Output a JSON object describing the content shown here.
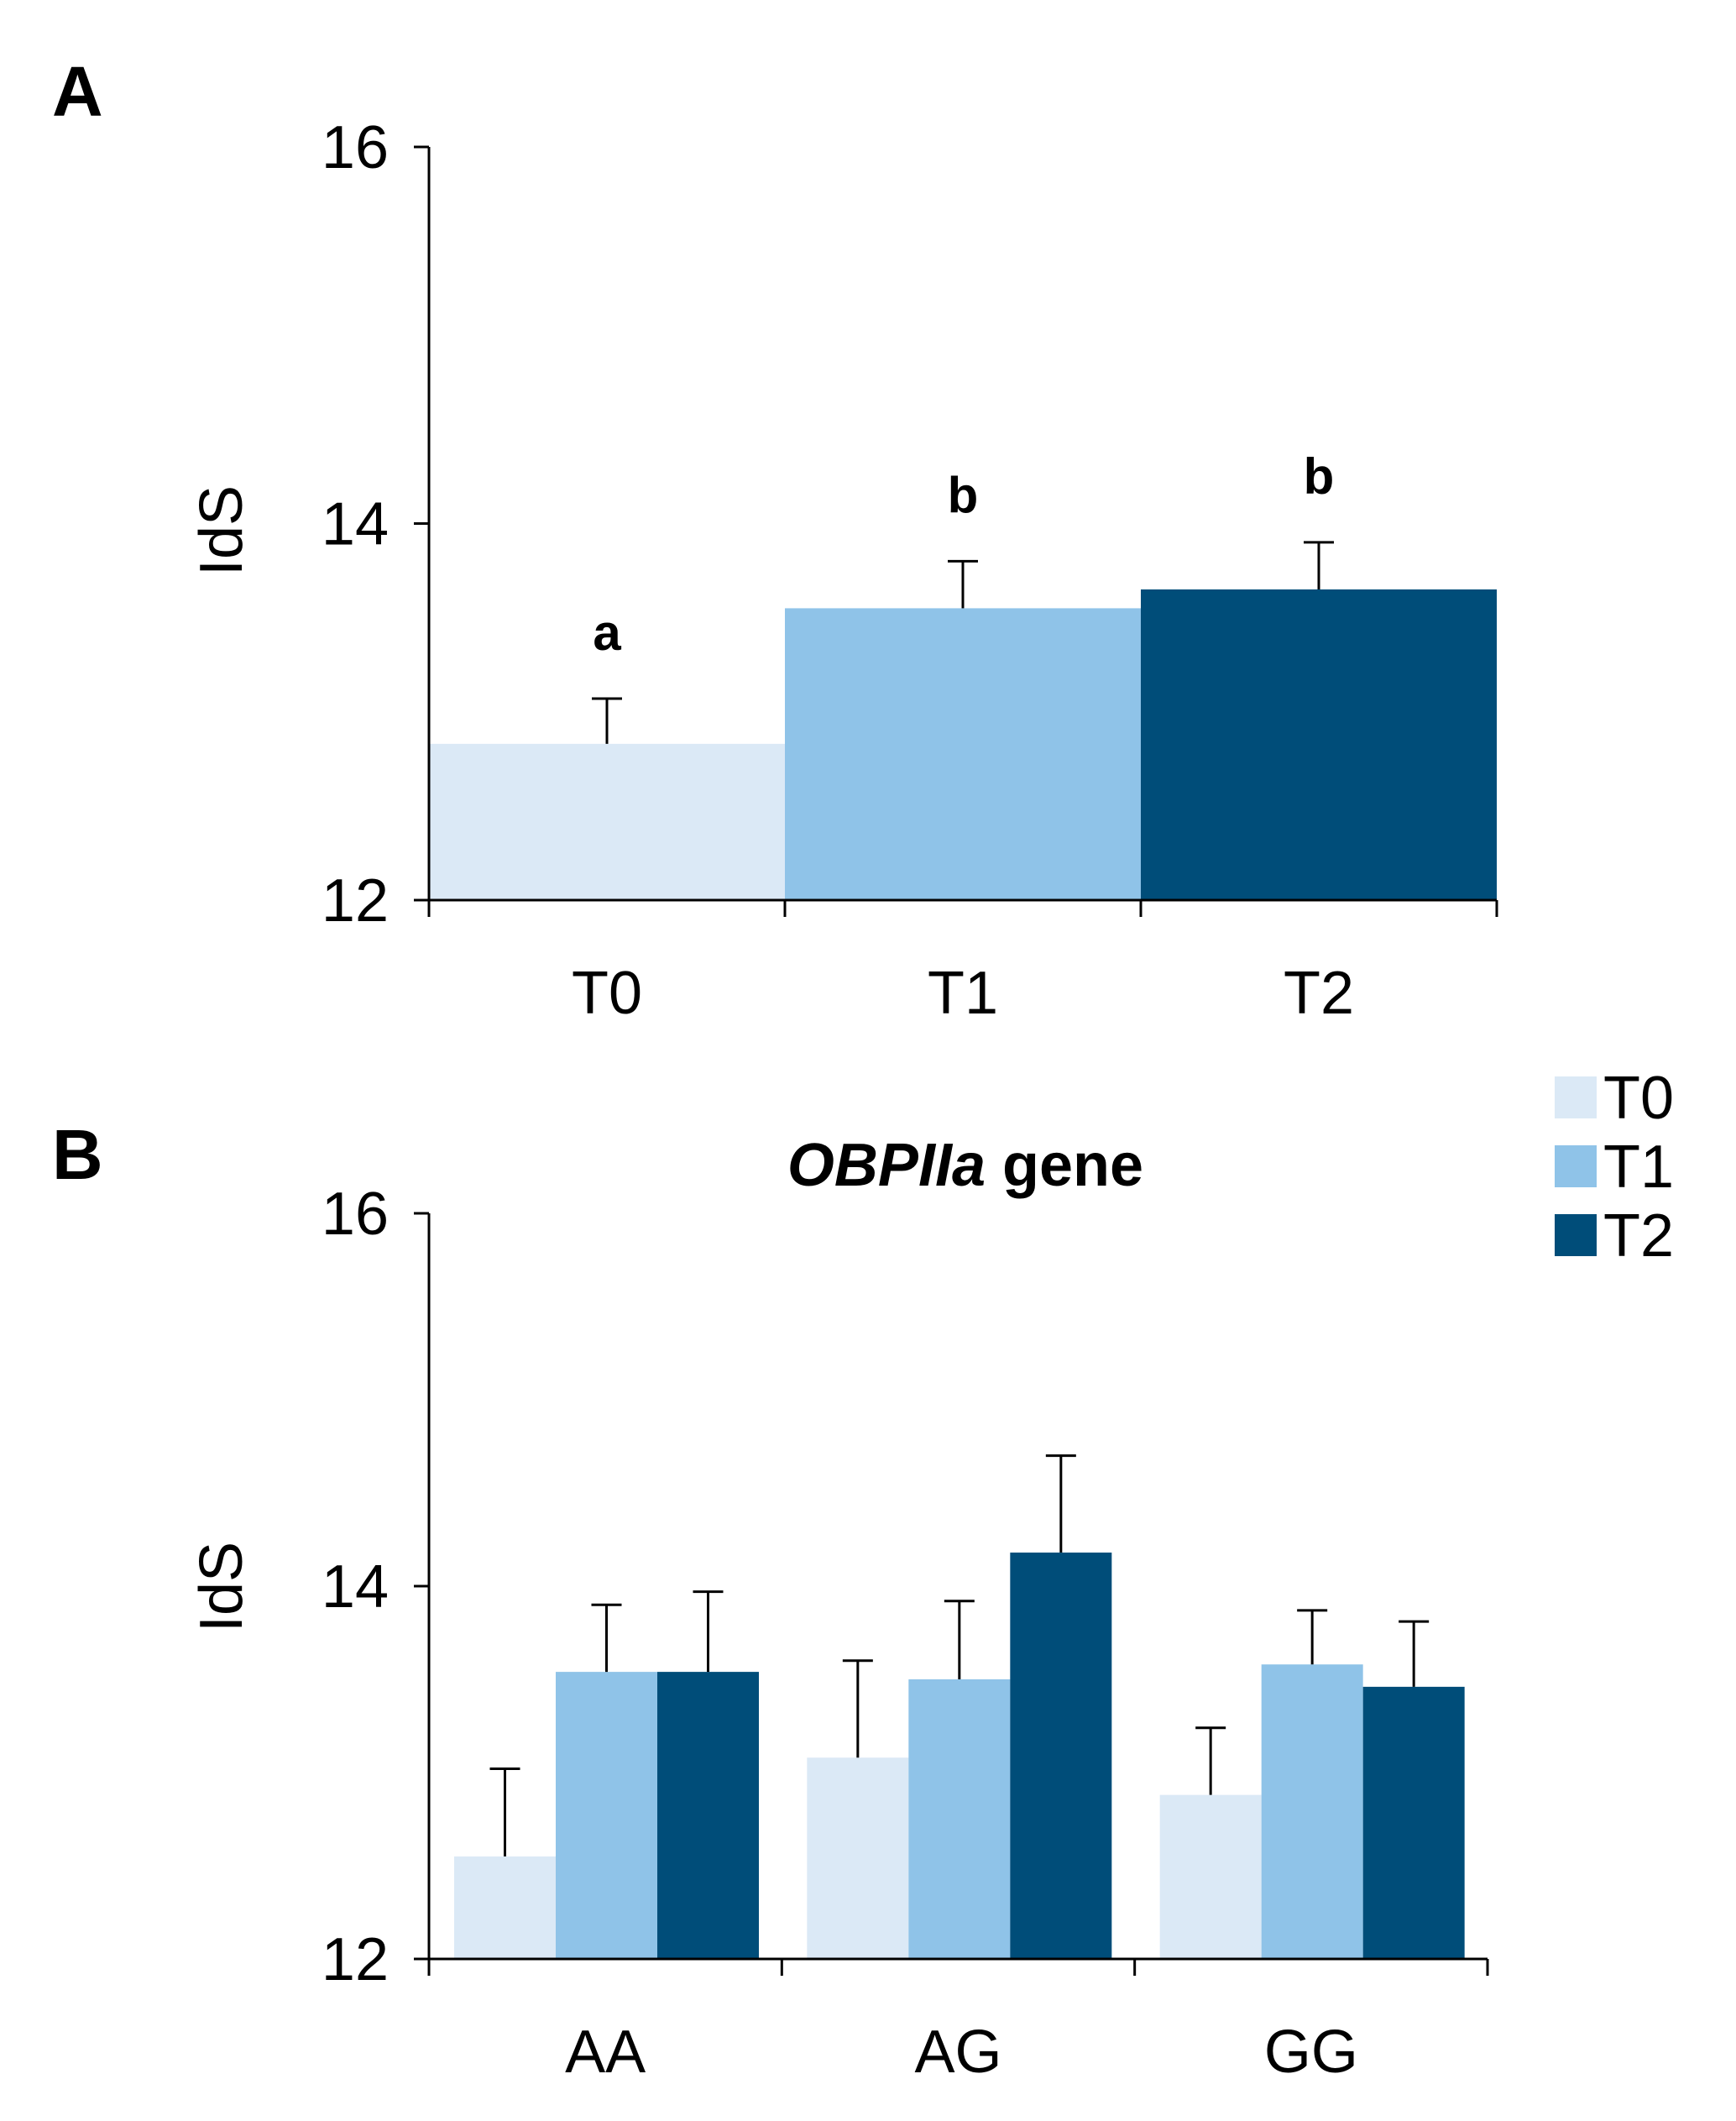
{
  "chart_data": [
    {
      "panel_label": "A",
      "type": "bar",
      "title": "",
      "xlabel": "",
      "ylabel": "IdS",
      "ylim": [
        12,
        16
      ],
      "yticks": [
        "12",
        "14",
        "16"
      ],
      "categories": [
        "T0",
        "T1",
        "T2"
      ],
      "values": [
        12.83,
        13.55,
        13.65
      ],
      "errors": [
        0.24,
        0.25,
        0.25
      ],
      "colors": [
        "#dbe9f6",
        "#8fc3e8",
        "#004d79"
      ],
      "significance": [
        "a",
        "b",
        "b"
      ]
    },
    {
      "panel_label": "B",
      "type": "bar",
      "title_italic": "OBPIIa",
      "title_rest": " gene",
      "xlabel": "",
      "ylabel": "IdS",
      "ylim": [
        12,
        16
      ],
      "yticks": [
        "12",
        "14",
        "16"
      ],
      "categories": [
        "AA",
        "AG",
        "GG"
      ],
      "series": [
        {
          "name": "T0",
          "color": "#dbe9f6",
          "values": [
            12.55,
            13.08,
            12.88
          ],
          "errors": [
            0.47,
            0.52,
            0.36
          ]
        },
        {
          "name": "T1",
          "color": "#8fc3e8",
          "values": [
            13.54,
            13.5,
            13.58
          ],
          "errors": [
            0.36,
            0.42,
            0.29
          ]
        },
        {
          "name": "T2",
          "color": "#004d79",
          "values": [
            13.54,
            14.18,
            13.46
          ],
          "errors": [
            0.43,
            0.52,
            0.35
          ]
        }
      ],
      "legend_position": "top-right"
    }
  ]
}
